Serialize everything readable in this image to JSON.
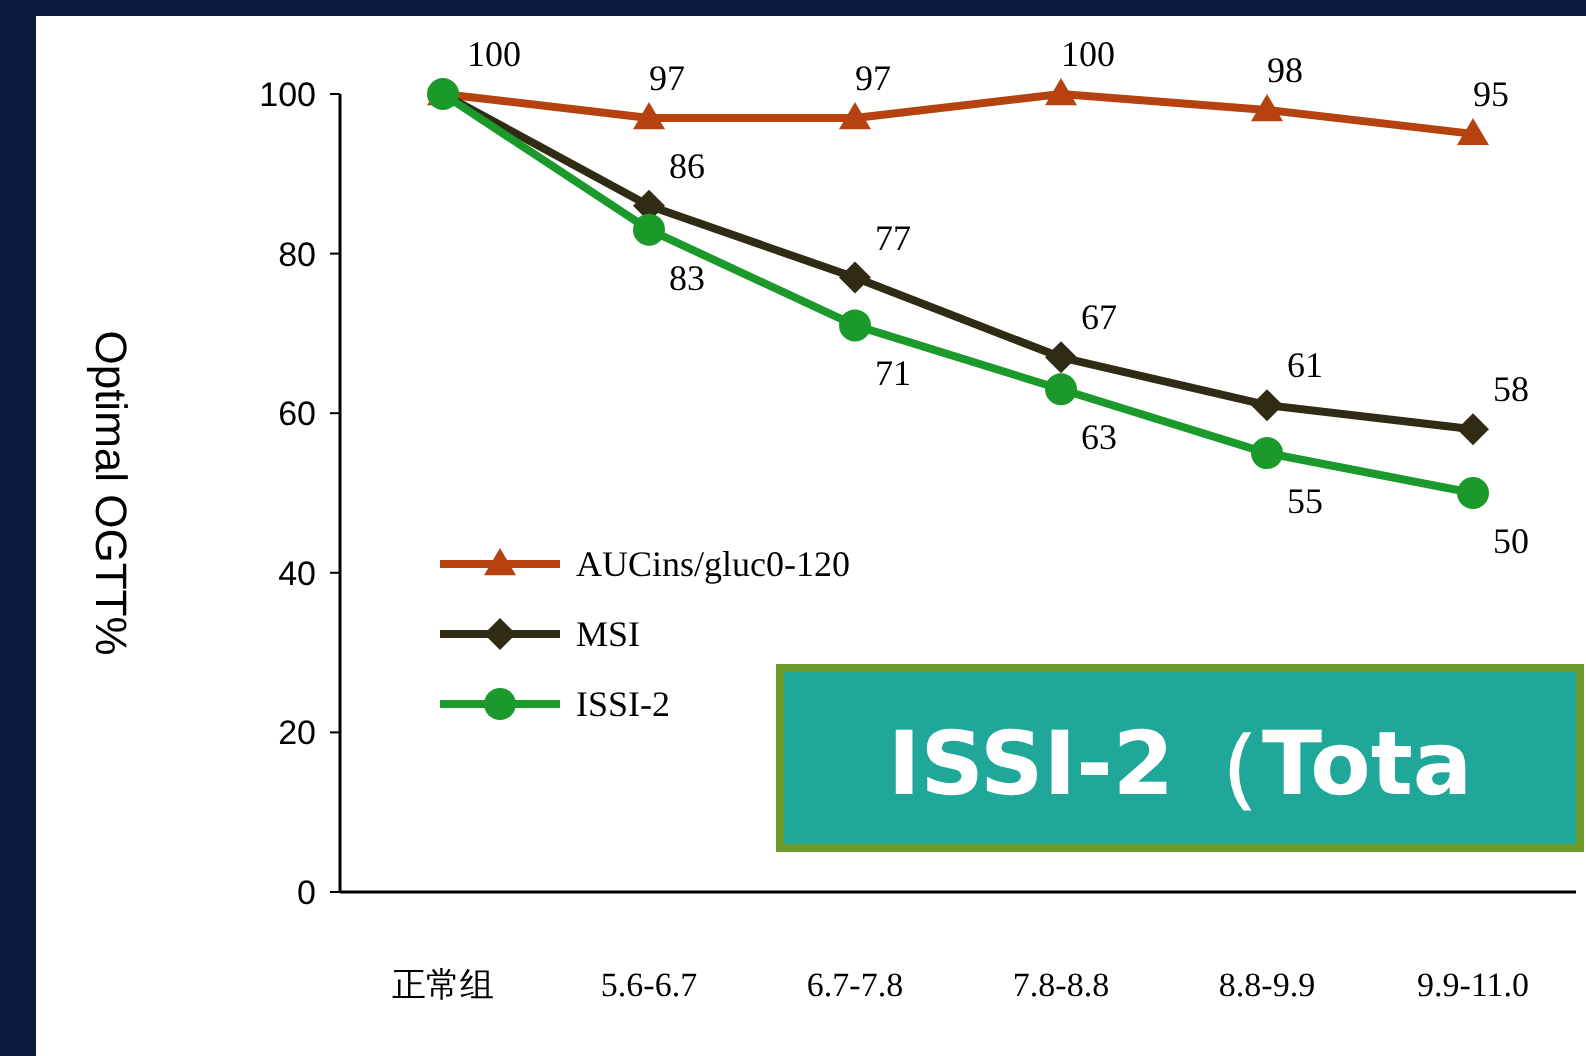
{
  "chart_data": {
    "type": "line",
    "ylabel": "Optimal OGTT%",
    "categories": [
      "正常组",
      "5.6-6.7",
      "6.7-7.8",
      "7.8-8.8",
      "8.8-9.9",
      "9.9-11.0"
    ],
    "ylim": [
      0,
      100
    ],
    "yticks": [
      0,
      20,
      40,
      60,
      80,
      100
    ],
    "grid": false,
    "legend": "bottom left",
    "series": [
      {
        "name": "AUCins/gluc0-120",
        "color": "#b5420f",
        "marker": "triangle",
        "values": [
          100,
          97,
          97,
          100,
          98,
          95
        ],
        "value_labels": [
          "100",
          "97",
          "97",
          "100",
          "98",
          "95"
        ]
      },
      {
        "name": "MSI",
        "color": "#2f2b14",
        "marker": "diamond",
        "values": [
          100,
          86,
          77,
          67,
          61,
          58
        ],
        "value_labels": [
          null,
          "86",
          "77",
          "67",
          "61",
          "58"
        ]
      },
      {
        "name": "ISSI-2",
        "color": "#1b9a2b",
        "marker": "circle",
        "values": [
          100,
          83,
          71,
          63,
          55,
          50
        ],
        "value_labels": [
          null,
          "83",
          "71",
          "63",
          "55",
          "50"
        ]
      }
    ],
    "annotations": [
      "ISSI-2（Tota"
    ]
  }
}
